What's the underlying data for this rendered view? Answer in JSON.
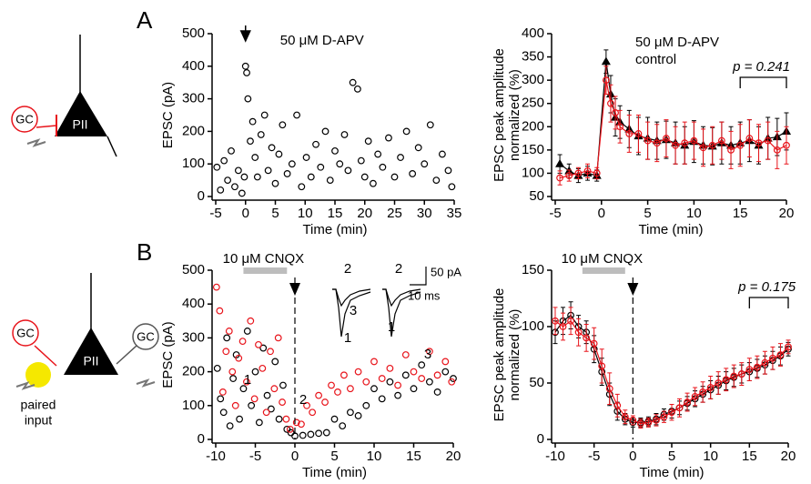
{
  "panels": {
    "a": "A",
    "b": "B"
  },
  "diagram_top": {
    "gc": "GC",
    "cell": "PII"
  },
  "diagram_bottom": {
    "gc_left": "GC",
    "cell": "PII",
    "gc_right": "GC",
    "input": [
      "paired",
      "input"
    ]
  },
  "chart_data": [
    {
      "type": "scatter",
      "xlabel": "Time (min)",
      "ylabel": [
        "EPSC (pA)"
      ],
      "annotation": "50 μM D-APV",
      "arrow_x": 0,
      "xlim": [
        -5,
        35
      ],
      "xticks": [
        -5,
        0,
        5,
        10,
        15,
        20,
        25,
        30,
        35
      ],
      "ylim": [
        0,
        500
      ],
      "yticks": [
        0,
        100,
        200,
        300,
        400,
        500
      ],
      "series": [
        {
          "color": "#000000",
          "marker": "circle",
          "x": [
            -4.8,
            -4.2,
            -3.6,
            -3,
            -2.4,
            -1.8,
            -1.2,
            -0.6,
            -0.2,
            0,
            0.2,
            0.4,
            0.8,
            1.2,
            1.6,
            2,
            2.6,
            3.2,
            3.8,
            4.4,
            5,
            5.6,
            6.2,
            7,
            7.8,
            8.6,
            9.4,
            10.2,
            11,
            11.8,
            12.6,
            13.4,
            14.2,
            15,
            15.8,
            16.6,
            17.2,
            18,
            18.8,
            19.4,
            20,
            20.6,
            21.4,
            22.2,
            23,
            24,
            25,
            26,
            27,
            28,
            29,
            30,
            31,
            32,
            33,
            34,
            34.6
          ],
          "values": [
            90,
            20,
            110,
            50,
            140,
            30,
            80,
            10,
            60,
            400,
            380,
            300,
            170,
            230,
            120,
            60,
            190,
            250,
            80,
            150,
            40,
            130,
            220,
            70,
            100,
            250,
            30,
            120,
            60,
            160,
            90,
            200,
            50,
            140,
            100,
            190,
            80,
            350,
            330,
            110,
            60,
            170,
            40,
            130,
            90,
            180,
            60,
            120,
            200,
            70,
            150,
            100,
            220,
            50,
            130,
            80,
            30
          ]
        }
      ]
    },
    {
      "type": "line",
      "xlabel": "Time (min)",
      "ylabel": [
        "EPSC peak amplitude",
        "normalized (%)"
      ],
      "p_label": "p = 0.241",
      "bracket": [
        15,
        20
      ],
      "xlim": [
        -5,
        20
      ],
      "xticks": [
        -5,
        0,
        5,
        10,
        15,
        20
      ],
      "ylim": [
        50,
        400
      ],
      "yticks": [
        50,
        100,
        150,
        200,
        250,
        300,
        350,
        400
      ],
      "series": [
        {
          "name": "50 μM D-APV",
          "color": "#000000",
          "marker": "triangle",
          "x": [
            -4.5,
            -3.5,
            -2.5,
            -1.5,
            -0.5,
            0.5,
            1,
            1.5,
            2,
            3,
            4,
            5,
            6,
            7,
            8,
            9,
            10,
            11,
            12,
            13,
            14,
            15,
            16,
            17,
            18,
            19,
            20
          ],
          "values": [
            120,
            105,
            95,
            100,
            95,
            340,
            270,
            220,
            210,
            195,
            180,
            175,
            170,
            172,
            165,
            160,
            168,
            160,
            158,
            165,
            160,
            165,
            170,
            160,
            175,
            178,
            190
          ],
          "errors": [
            20,
            15,
            15,
            15,
            12,
            25,
            40,
            40,
            35,
            40,
            40,
            45,
            40,
            40,
            45,
            40,
            45,
            40,
            40,
            45,
            40,
            45,
            45,
            40,
            45,
            40,
            40
          ]
        },
        {
          "name": "control",
          "color": "#e8141b",
          "marker": "circle",
          "x": [
            -4.5,
            -3.5,
            -2.5,
            -1.5,
            -0.5,
            0.5,
            1,
            1.5,
            2,
            3,
            4,
            5,
            6,
            7,
            8,
            9,
            10,
            11,
            12,
            13,
            14,
            15,
            16,
            17,
            18,
            19,
            20
          ],
          "values": [
            90,
            95,
            100,
            105,
            100,
            300,
            250,
            230,
            200,
            185,
            185,
            170,
            165,
            175,
            160,
            165,
            170,
            155,
            160,
            170,
            150,
            160,
            175,
            165,
            170,
            150,
            160
          ],
          "errors": [
            15,
            12,
            12,
            15,
            12,
            30,
            40,
            35,
            35,
            40,
            40,
            40,
            40,
            40,
            40,
            45,
            40,
            40,
            40,
            40,
            40,
            45,
            40,
            40,
            40,
            40,
            40
          ]
        }
      ]
    },
    {
      "type": "scatter",
      "xlabel": "Time (min)",
      "ylabel": [
        "EPSC (pA)"
      ],
      "drug": "10 μM CNQX",
      "drug_range": [
        -6.5,
        -1
      ],
      "vline": 0,
      "trace_labels": [
        "1",
        "2",
        "3"
      ],
      "scale_bar": {
        "y": "50 pA",
        "x": "10 ms"
      },
      "xlim": [
        -10,
        20
      ],
      "xticks": [
        -10,
        -5,
        0,
        5,
        10,
        15,
        20
      ],
      "ylim": [
        0,
        500
      ],
      "yticks": [
        0,
        100,
        200,
        300,
        400,
        500
      ],
      "series": [
        {
          "color": "#000000",
          "marker": "circle",
          "x": [
            -9.8,
            -9.4,
            -9,
            -8.6,
            -8.2,
            -7.8,
            -7.4,
            -7,
            -6.5,
            -6,
            -5.5,
            -5,
            -4.5,
            -4,
            -3.5,
            -3,
            -2.5,
            -2,
            -1.5,
            -1,
            -0.5,
            0,
            1,
            2,
            3,
            4,
            5,
            6,
            7,
            8,
            9,
            10,
            11,
            12,
            13,
            14,
            15,
            16,
            17,
            18,
            19,
            20
          ],
          "values": [
            210,
            120,
            80,
            300,
            40,
            180,
            250,
            60,
            150,
            320,
            100,
            200,
            50,
            270,
            130,
            90,
            230,
            60,
            160,
            30,
            20,
            10,
            12,
            15,
            18,
            20,
            60,
            40,
            80,
            70,
            100,
            150,
            120,
            170,
            130,
            190,
            150,
            220,
            170,
            140,
            200,
            180
          ]
        },
        {
          "color": "#e8141b",
          "marker": "circle",
          "x": [
            -9.9,
            -9.5,
            -9.1,
            -8.7,
            -8.3,
            -7.9,
            -7.5,
            -7.1,
            -6.6,
            -6.1,
            -5.6,
            -5.1,
            -4.6,
            -4.1,
            -3.6,
            -3.1,
            -2.6,
            -2.1,
            -1.6,
            -1.1,
            -0.6,
            0.2,
            0.8,
            1.5,
            2.2,
            3,
            3.8,
            4.6,
            5.4,
            6.2,
            7,
            8,
            9,
            10,
            11,
            12,
            13,
            14,
            15,
            16,
            17,
            18,
            19,
            19.8
          ],
          "values": [
            450,
            380,
            140,
            260,
            320,
            200,
            100,
            240,
            290,
            170,
            350,
            120,
            280,
            210,
            80,
            260,
            150,
            300,
            110,
            60,
            30,
            50,
            45,
            100,
            80,
            130,
            110,
            160,
            140,
            190,
            150,
            200,
            170,
            230,
            180,
            210,
            160,
            250,
            200,
            180,
            260,
            190,
            230,
            170
          ]
        }
      ]
    },
    {
      "type": "line",
      "xlabel": "Time (min)",
      "ylabel": [
        "EPSC peak amplitude",
        "normalized (%)"
      ],
      "drug": "10 μM CNQX",
      "drug_range": [
        -6.5,
        -1
      ],
      "vline": 0,
      "p_label": "p = 0.175",
      "bracket": [
        15,
        20
      ],
      "xlim": [
        -10,
        20
      ],
      "xticks": [
        -10,
        -5,
        0,
        5,
        10,
        15,
        20
      ],
      "ylim": [
        0,
        150
      ],
      "yticks": [
        0,
        50,
        100,
        150
      ],
      "series": [
        {
          "color": "#000000",
          "marker": "circle",
          "x": [
            -10,
            -9,
            -8,
            -7,
            -6,
            -5,
            -4,
            -3,
            -2,
            -1,
            0,
            1,
            2,
            3,
            4,
            5,
            6,
            7,
            8,
            9,
            10,
            11,
            12,
            13,
            14,
            15,
            16,
            17,
            18,
            19,
            20
          ],
          "values": [
            95,
            105,
            110,
            100,
            95,
            80,
            60,
            40,
            25,
            18,
            15,
            15,
            16,
            18,
            22,
            25,
            28,
            32,
            36,
            40,
            44,
            48,
            52,
            55,
            58,
            60,
            63,
            66,
            70,
            74,
            80
          ],
          "errors": [
            10,
            12,
            12,
            10,
            10,
            12,
            12,
            10,
            8,
            5,
            4,
            4,
            4,
            5,
            5,
            6,
            6,
            6,
            7,
            7,
            8,
            8,
            8,
            8,
            8,
            8,
            8,
            8,
            8,
            8,
            6
          ]
        },
        {
          "color": "#e8141b",
          "marker": "circle",
          "x": [
            -10,
            -9,
            -8,
            -7,
            -6,
            -5,
            -4,
            -3,
            -2,
            -1,
            0,
            1,
            2,
            3,
            4,
            5,
            6,
            7,
            8,
            9,
            10,
            11,
            12,
            13,
            14,
            15,
            16,
            17,
            18,
            19,
            20
          ],
          "values": [
            105,
            100,
            105,
            95,
            90,
            85,
            65,
            45,
            30,
            20,
            17,
            14,
            15,
            17,
            20,
            24,
            28,
            33,
            38,
            42,
            46,
            50,
            53,
            56,
            58,
            62,
            64,
            68,
            72,
            75,
            82
          ],
          "errors": [
            12,
            12,
            12,
            12,
            12,
            14,
            15,
            14,
            10,
            6,
            4,
            4,
            4,
            5,
            5,
            7,
            8,
            8,
            8,
            9,
            10,
            10,
            10,
            10,
            10,
            10,
            10,
            10,
            10,
            10,
            6
          ]
        }
      ]
    }
  ]
}
